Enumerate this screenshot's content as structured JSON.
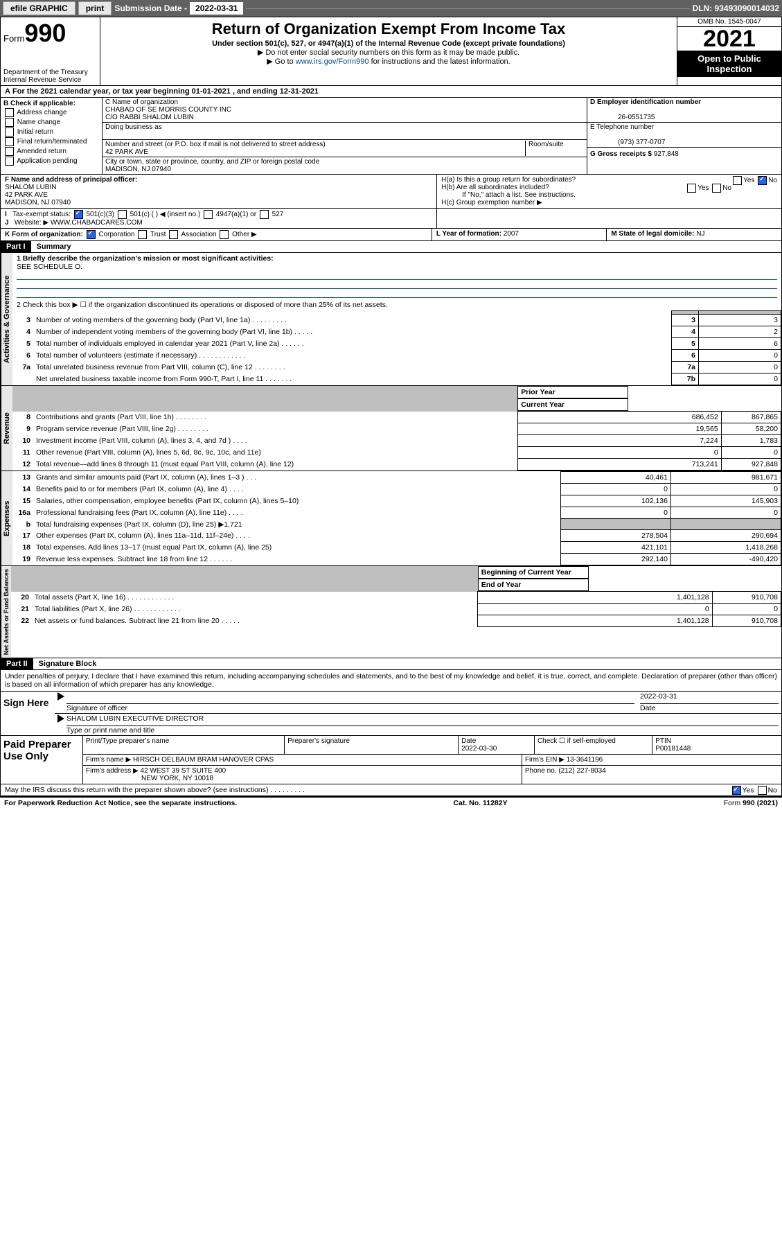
{
  "topbar": {
    "efile": "efile GRAPHIC",
    "print": "print",
    "sub_label": "Submission Date - ",
    "sub_date": "2022-03-31",
    "dln": "DLN: 93493090014032"
  },
  "header": {
    "form_prefix": "Form",
    "form_num": "990",
    "dept": "Department of the Treasury Internal Revenue Service",
    "title": "Return of Organization Exempt From Income Tax",
    "subtitle": "Under section 501(c), 527, or 4947(a)(1) of the Internal Revenue Code (except private foundations)",
    "note1": "▶ Do not enter social security numbers on this form as it may be made public.",
    "note2_pre": "▶ Go to ",
    "note2_link": "www.irs.gov/Form990",
    "note2_post": " for instructions and the latest information.",
    "omb": "OMB No. 1545-0047",
    "year": "2021",
    "open": "Open to Public Inspection"
  },
  "period": "For the 2021 calendar year, or tax year beginning 01-01-2021   , and ending 12-31-2021",
  "checkB": {
    "label": "B Check if applicable:",
    "items": [
      "Address change",
      "Name change",
      "Initial return",
      "Final return/terminated",
      "Amended return",
      "Application pending"
    ]
  },
  "org": {
    "name_lbl": "C Name of organization",
    "name": "CHABAD OF SE MORRIS COUNTY INC",
    "care": "C/O RABBI SHALOM LUBIN",
    "dba_lbl": "Doing business as",
    "addr_lbl": "Number and street (or P.O. box if mail is not delivered to street address)",
    "room_lbl": "Room/suite",
    "addr": "42 PARK AVE",
    "city_lbl": "City or town, state or province, country, and ZIP or foreign postal code",
    "city": "MADISON, NJ  07940"
  },
  "right": {
    "ein_lbl": "D Employer identification number",
    "ein": "26-0551735",
    "tel_lbl": "E Telephone number",
    "tel": "(973) 377-0707",
    "gross_lbl": "G Gross receipts $",
    "gross": "927,848"
  },
  "officer": {
    "lbl": "F Name and address of principal officer:",
    "name": "SHALOM LUBIN",
    "addr1": "42 PARK AVE",
    "addr2": "MADISON, NJ  07940"
  },
  "h": {
    "a": "H(a)  Is this a group return for subordinates?",
    "b": "H(b)  Are all subordinates included?",
    "b_note": "If \"No,\" attach a list. See instructions.",
    "c": "H(c)  Group exemption number ▶"
  },
  "i": {
    "lbl": "Tax-exempt status:",
    "o1": "501(c)(3)",
    "o2": "501(c) (    ) ◀ (insert no.)",
    "o3": "4947(a)(1) or",
    "o4": "527"
  },
  "j": {
    "lbl": "Website: ▶",
    "val": "WWW.CHABADCARES.COM"
  },
  "k": {
    "lbl": "K Form of organization:",
    "o1": "Corporation",
    "o2": "Trust",
    "o3": "Association",
    "o4": "Other ▶"
  },
  "l": {
    "lbl": "L Year of formation:",
    "val": "2007"
  },
  "m": {
    "lbl": "M State of legal domicile:",
    "val": "NJ"
  },
  "parts": {
    "p1": "Part I",
    "p1t": "Summary",
    "p2": "Part II",
    "p2t": "Signature Block"
  },
  "mission": {
    "l1": "1  Briefly describe the organization's mission or most significant activities:",
    "txt": "SEE SCHEDULE O."
  },
  "gov": {
    "l2": "2   Check this box ▶ ☐  if the organization discontinued its operations or disposed of more than 25% of its net assets.",
    "rows": [
      {
        "n": "3",
        "d": "Number of voting members of the governing body (Part VI, line 1a)  .    .    .    .    .    .    .    .    .",
        "b": "3",
        "v": "3"
      },
      {
        "n": "4",
        "d": "Number of independent voting members of the governing body (Part VI, line 1b)   .    .    .    .    .",
        "b": "4",
        "v": "2"
      },
      {
        "n": "5",
        "d": "Total number of individuals employed in calendar year 2021 (Part V, line 2a)   .    .    .    .    .    .",
        "b": "5",
        "v": "6"
      },
      {
        "n": "6",
        "d": "Total number of volunteers (estimate if necessary)   .    .    .    .    .    .    .    .    .    .    .    .",
        "b": "6",
        "v": "0"
      },
      {
        "n": "7a",
        "d": "Total unrelated business revenue from Part VIII, column (C), line 12  .    .    .    .    .    .    .    .",
        "b": "7a",
        "v": "0"
      },
      {
        "n": "",
        "d": "Net unrelated business taxable income from Form 990-T, Part I, line 11   .    .    .    .    .    .    .",
        "b": "7b",
        "v": "0"
      }
    ]
  },
  "cols": {
    "py": "Prior Year",
    "cy": "Current Year",
    "boy": "Beginning of Current Year",
    "eoy": "End of Year"
  },
  "rev": [
    {
      "n": "8",
      "d": "Contributions and grants (Part VIII, line 1h)   .    .    .    .    .    .    .    .",
      "p": "686,452",
      "c": "867,865"
    },
    {
      "n": "9",
      "d": "Program service revenue (Part VIII, line 2g)   .    .    .    .    .    .    .    .",
      "p": "19,565",
      "c": "58,200"
    },
    {
      "n": "10",
      "d": "Investment income (Part VIII, column (A), lines 3, 4, and 7d )    .    .    .    .",
      "p": "7,224",
      "c": "1,783"
    },
    {
      "n": "11",
      "d": "Other revenue (Part VIII, column (A), lines 5, 6d, 8c, 9c, 10c, and 11e)",
      "p": "0",
      "c": "0"
    },
    {
      "n": "12",
      "d": "Total revenue—add lines 8 through 11 (must equal Part VIII, column (A), line 12)",
      "p": "713,241",
      "c": "927,848"
    }
  ],
  "exp": [
    {
      "n": "13",
      "d": "Grants and similar amounts paid (Part IX, column (A), lines 1–3 )   .    .    .",
      "p": "40,461",
      "c": "981,671"
    },
    {
      "n": "14",
      "d": "Benefits paid to or for members (Part IX, column (A), line 4)  .    .    .    .",
      "p": "0",
      "c": "0"
    },
    {
      "n": "15",
      "d": "Salaries, other compensation, employee benefits (Part IX, column (A), lines 5–10)",
      "p": "102,136",
      "c": "145,903"
    },
    {
      "n": "16a",
      "d": "Professional fundraising fees (Part IX, column (A), line 11e)   .    .    .    .",
      "p": "0",
      "c": "0"
    },
    {
      "n": "b",
      "d": "Total fundraising expenses (Part IX, column (D), line 25) ▶1,721",
      "p": "",
      "c": "",
      "grey": true
    },
    {
      "n": "17",
      "d": "Other expenses (Part IX, column (A), lines 11a–11d, 11f–24e)  .    .    .    .",
      "p": "278,504",
      "c": "290,694"
    },
    {
      "n": "18",
      "d": "Total expenses. Add lines 13–17 (must equal Part IX, column (A), line 25)",
      "p": "421,101",
      "c": "1,418,268"
    },
    {
      "n": "19",
      "d": "Revenue less expenses. Subtract line 18 from line 12  .    .    .    .    .    .",
      "p": "292,140",
      "c": "-490,420"
    }
  ],
  "net": [
    {
      "n": "20",
      "d": "Total assets (Part X, line 16)   .    .    .    .    .    .    .    .    .    .    .    .",
      "p": "1,401,128",
      "c": "910,708"
    },
    {
      "n": "21",
      "d": "Total liabilities (Part X, line 26)  .    .    .    .    .    .    .    .    .    .    .    .",
      "p": "0",
      "c": "0"
    },
    {
      "n": "22",
      "d": "Net assets or fund balances. Subtract line 21 from line 20   .    .    .    .    .",
      "p": "1,401,128",
      "c": "910,708"
    }
  ],
  "vtabs": {
    "gov": "Activities & Governance",
    "rev": "Revenue",
    "exp": "Expenses",
    "net": "Net Assets or Fund Balances"
  },
  "sig": {
    "decl": "Under penalties of perjury, I declare that I have examined this return, including accompanying schedules and statements, and to the best of my knowledge and belief, it is true, correct, and complete. Declaration of preparer (other than officer) is based on all information of which preparer has any knowledge.",
    "here": "Sign Here",
    "off_sig": "Signature of officer",
    "date": "Date",
    "sig_date": "2022-03-31",
    "name": "SHALOM LUBIN  EXECUTIVE DIRECTOR",
    "name_lbl": "Type or print name and title"
  },
  "paid": {
    "title": "Paid Preparer Use Only",
    "c1": "Print/Type preparer's name",
    "c2": "Preparer's signature",
    "c3": "Date",
    "c3v": "2022-03-30",
    "c4": "Check ☐ if self-employed",
    "c5": "PTIN",
    "c5v": "P00181448",
    "firm_lbl": "Firm's name     ▶",
    "firm": "HIRSCH OELBAUM BRAM HANOVER CPAS",
    "ein_lbl": "Firm's EIN ▶",
    "ein": "13-3641196",
    "addr_lbl": "Firm's address ▶",
    "addr1": "42 WEST 39 ST SUITE 400",
    "addr2": "NEW YORK, NY  10018",
    "ph_lbl": "Phone no.",
    "ph": "(212) 227-8034"
  },
  "may": "May the IRS discuss this return with the preparer shown above? (see instructions)   .    .    .    .    .    .    .    .    .",
  "footer": {
    "l": "For Paperwork Reduction Act Notice, see the separate instructions.",
    "c": "Cat. No. 11282Y",
    "r": "Form 990 (2021)"
  }
}
